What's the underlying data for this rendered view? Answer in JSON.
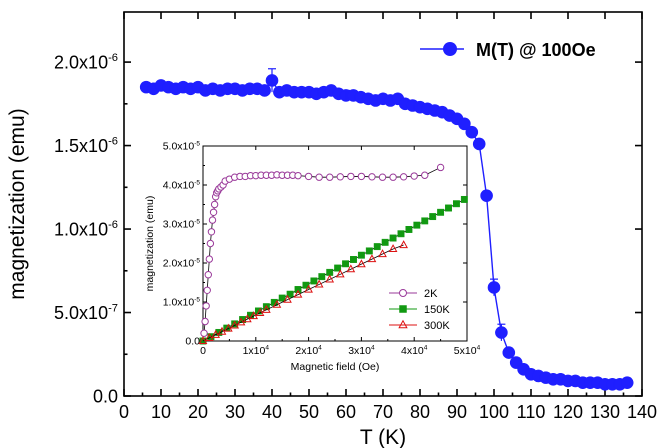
{
  "chart_data": [
    {
      "type": "scatter",
      "xlabel": "T (K)",
      "ylabel": "magnetization (emu)",
      "xlim": [
        0,
        140
      ],
      "ylim": [
        0,
        2.3e-06
      ],
      "x_ticks": [
        {
          "v": 0,
          "label": "0"
        },
        {
          "v": 10,
          "label": "10"
        },
        {
          "v": 20,
          "label": "20"
        },
        {
          "v": 30,
          "label": "30"
        },
        {
          "v": 40,
          "label": "40"
        },
        {
          "v": 50,
          "label": "50"
        },
        {
          "v": 60,
          "label": "60"
        },
        {
          "v": 70,
          "label": "70"
        },
        {
          "v": 80,
          "label": "80"
        },
        {
          "v": 90,
          "label": "90"
        },
        {
          "v": 100,
          "label": "100"
        },
        {
          "v": 110,
          "label": "110"
        },
        {
          "v": 120,
          "label": "120"
        },
        {
          "v": 130,
          "label": "130"
        },
        {
          "v": 140,
          "label": "140"
        }
      ],
      "y_ticks": [
        {
          "v": 0,
          "label": "0.0"
        },
        {
          "v": 5e-07,
          "mant": "5.0x10",
          "exp": "-7"
        },
        {
          "v": 1e-06,
          "mant": "1.0x10",
          "exp": "-6"
        },
        {
          "v": 1.5e-06,
          "mant": "1.5x10",
          "exp": "-6"
        },
        {
          "v": 2e-06,
          "mant": "2.0x10",
          "exp": "-6"
        }
      ],
      "legend_position": "top-right",
      "series": [
        {
          "name": "M(T) @ 100Oe",
          "color": "#1f1fff",
          "marker": "filled-circle",
          "x": [
            6,
            8,
            10,
            12,
            14,
            16,
            18,
            20,
            22,
            24,
            26,
            28,
            30,
            32,
            34,
            36,
            38,
            40,
            42,
            44,
            46,
            48,
            50,
            52,
            54,
            56,
            58,
            60,
            62,
            64,
            66,
            68,
            70,
            72,
            74,
            76,
            78,
            80,
            82,
            84,
            86,
            88,
            90,
            92,
            94,
            96,
            98,
            100,
            102,
            104,
            106,
            108,
            110,
            112,
            114,
            116,
            118,
            120,
            122,
            124,
            126,
            128,
            130,
            132,
            134,
            136
          ],
          "y": [
            1.85e-06,
            1.84e-06,
            1.86e-06,
            1.85e-06,
            1.84e-06,
            1.85e-06,
            1.84e-06,
            1.85e-06,
            1.83e-06,
            1.84e-06,
            1.83e-06,
            1.84e-06,
            1.84e-06,
            1.83e-06,
            1.84e-06,
            1.84e-06,
            1.83e-06,
            1.89e-06,
            1.82e-06,
            1.83e-06,
            1.82e-06,
            1.82e-06,
            1.82e-06,
            1.81e-06,
            1.82e-06,
            1.83e-06,
            1.81e-06,
            1.8e-06,
            1.8e-06,
            1.79e-06,
            1.78e-06,
            1.77e-06,
            1.78e-06,
            1.77e-06,
            1.78e-06,
            1.75e-06,
            1.74e-06,
            1.73e-06,
            1.72e-06,
            1.71e-06,
            1.7e-06,
            1.68e-06,
            1.66e-06,
            1.63e-06,
            1.58e-06,
            1.51e-06,
            1.2e-06,
            6.5e-07,
            3.8e-07,
            2.6e-07,
            2e-07,
            1.6e-07,
            1.3e-07,
            1.2e-07,
            1.1e-07,
            1e-07,
            1e-07,
            9e-08,
            9e-08,
            8e-08,
            8e-08,
            8e-08,
            7e-08,
            7e-08,
            7e-08,
            8e-08
          ]
        }
      ]
    },
    {
      "type": "scatter",
      "xlabel": "Magnetic field (Oe)",
      "ylabel": "magnetization (emu)",
      "xlim": [
        0,
        50000
      ],
      "ylim": [
        0,
        5e-05
      ],
      "x_ticks": [
        {
          "v": 0,
          "label": "0"
        },
        {
          "v": 10000,
          "mant": "1x10",
          "exp": "4"
        },
        {
          "v": 20000,
          "mant": "2x10",
          "exp": "4"
        },
        {
          "v": 30000,
          "mant": "3x10",
          "exp": "4"
        },
        {
          "v": 40000,
          "mant": "4x10",
          "exp": "4"
        },
        {
          "v": 50000,
          "mant": "5x10",
          "exp": "4"
        }
      ],
      "y_ticks": [
        {
          "v": 0,
          "label": "0.0"
        },
        {
          "v": 1e-05,
          "mant": "1.0x10",
          "exp": "-5"
        },
        {
          "v": 2e-05,
          "mant": "2.0x10",
          "exp": "-5"
        },
        {
          "v": 3e-05,
          "mant": "3.0x10",
          "exp": "-5"
        },
        {
          "v": 4e-05,
          "mant": "4.0x10",
          "exp": "-5"
        },
        {
          "v": 5e-05,
          "mant": "5.0x10",
          "exp": "-5"
        }
      ],
      "legend_position": "bottom-right",
      "series": [
        {
          "name": "2K",
          "color": "#9a3a9a",
          "marker": "open-circle",
          "x": [
            200,
            400,
            600,
            800,
            1000,
            1200,
            1400,
            1600,
            1800,
            2000,
            2200,
            2400,
            2600,
            2800,
            3000,
            3400,
            3800,
            4200,
            5000,
            6000,
            7000,
            8000,
            9000,
            10000,
            11000,
            12000,
            13000,
            14000,
            15000,
            16000,
            17000,
            18000,
            20000,
            22000,
            24000,
            26000,
            28000,
            30000,
            32000,
            34000,
            36000,
            38000,
            40000,
            42000,
            45000
          ],
          "y": [
            2e-06,
            5e-06,
            9e-06,
            1.3e-05,
            1.7e-05,
            2.1e-05,
            2.5e-05,
            2.8e-05,
            3.1e-05,
            3.3e-05,
            3.5e-05,
            3.7e-05,
            3.8e-05,
            3.85e-05,
            3.9e-05,
            3.95e-05,
            4e-05,
            4.1e-05,
            4.15e-05,
            4.2e-05,
            4.22e-05,
            4.22e-05,
            4.24e-05,
            4.24e-05,
            4.25e-05,
            4.25e-05,
            4.25e-05,
            4.26e-05,
            4.25e-05,
            4.25e-05,
            4.25e-05,
            4.24e-05,
            4.22e-05,
            4.2e-05,
            4.2e-05,
            4.21e-05,
            4.22e-05,
            4.22e-05,
            4.21e-05,
            4.2e-05,
            4.2e-05,
            4.21e-05,
            4.23e-05,
            4.25e-05,
            4.45e-05
          ]
        },
        {
          "name": "150K",
          "color": "#119911",
          "marker": "filled-square",
          "x": [
            0,
            1500,
            3000,
            4500,
            6000,
            7500,
            9000,
            10500,
            12000,
            13500,
            15000,
            16500,
            18000,
            19500,
            21000,
            22500,
            24000,
            25500,
            27000,
            28500,
            30000,
            31500,
            33000,
            34500,
            36000,
            37500,
            39000,
            40500,
            42000,
            43500,
            45000,
            46500,
            48000,
            49500
          ],
          "y": [
            0,
            1.1e-06,
            2.2e-06,
            3.3e-06,
            4.4e-06,
            5.5e-06,
            6.6e-06,
            7.7e-06,
            8.8e-06,
            9.9e-06,
            1.1e-05,
            1.2e-05,
            1.32e-05,
            1.43e-05,
            1.54e-05,
            1.65e-05,
            1.76e-05,
            1.87e-05,
            1.98e-05,
            2.09e-05,
            2.2e-05,
            2.31e-05,
            2.42e-05,
            2.53e-05,
            2.64e-05,
            2.75e-05,
            2.86e-05,
            2.97e-05,
            3.08e-05,
            3.19e-05,
            3.3e-05,
            3.41e-05,
            3.52e-05,
            3.63e-05
          ]
        },
        {
          "name": "300K",
          "color": "#dd1111",
          "marker": "open-triangle",
          "x": [
            0,
            1200,
            2400,
            3600,
            4800,
            6000,
            7200,
            8400,
            9600,
            10800,
            12000,
            14000,
            16000,
            18000,
            20000,
            22000,
            24000,
            26000,
            28000,
            30000,
            32000,
            34000,
            36000,
            38000
          ],
          "y": [
            0,
            8e-07,
            1.6e-06,
            2.4e-06,
            3.2e-06,
            4e-06,
            4.8e-06,
            5.6e-06,
            6.4e-06,
            7.2e-06,
            8e-06,
            9.3e-06,
            1.06e-05,
            1.19e-05,
            1.32e-05,
            1.45e-05,
            1.58e-05,
            1.71e-05,
            1.84e-05,
            1.97e-05,
            2.1e-05,
            2.23e-05,
            2.36e-05,
            2.46e-05
          ]
        }
      ]
    }
  ]
}
